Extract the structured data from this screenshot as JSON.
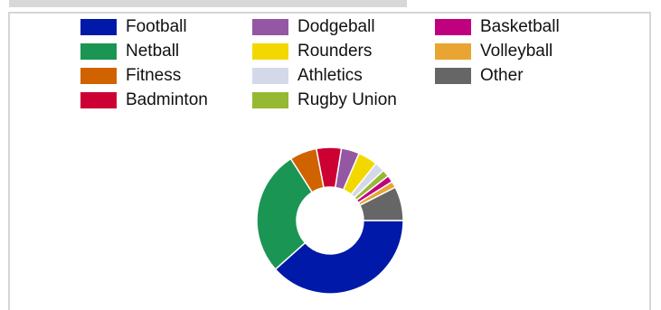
{
  "chart_data": {
    "type": "pie",
    "title": "",
    "categories": [
      "Football",
      "Netball",
      "Fitness",
      "Badminton",
      "Dodgeball",
      "Rounders",
      "Athletics",
      "Rugby Union",
      "Basketball",
      "Volleyball",
      "Other"
    ],
    "values": [
      38.4,
      27.6,
      6.0,
      5.5,
      4.0,
      4.3,
      2.2,
      1.6,
      1.5,
      1.4,
      7.5
    ],
    "colors": [
      "#0019a8",
      "#1b9553",
      "#d06200",
      "#cc0033",
      "#9457a3",
      "#f3d800",
      "#d3d9e9",
      "#95b933",
      "#c0007f",
      "#e8a531",
      "#666666"
    ],
    "legend_placement": "top",
    "donut": true
  },
  "icons": {
    "legend_swatch": "color-rectangle"
  }
}
